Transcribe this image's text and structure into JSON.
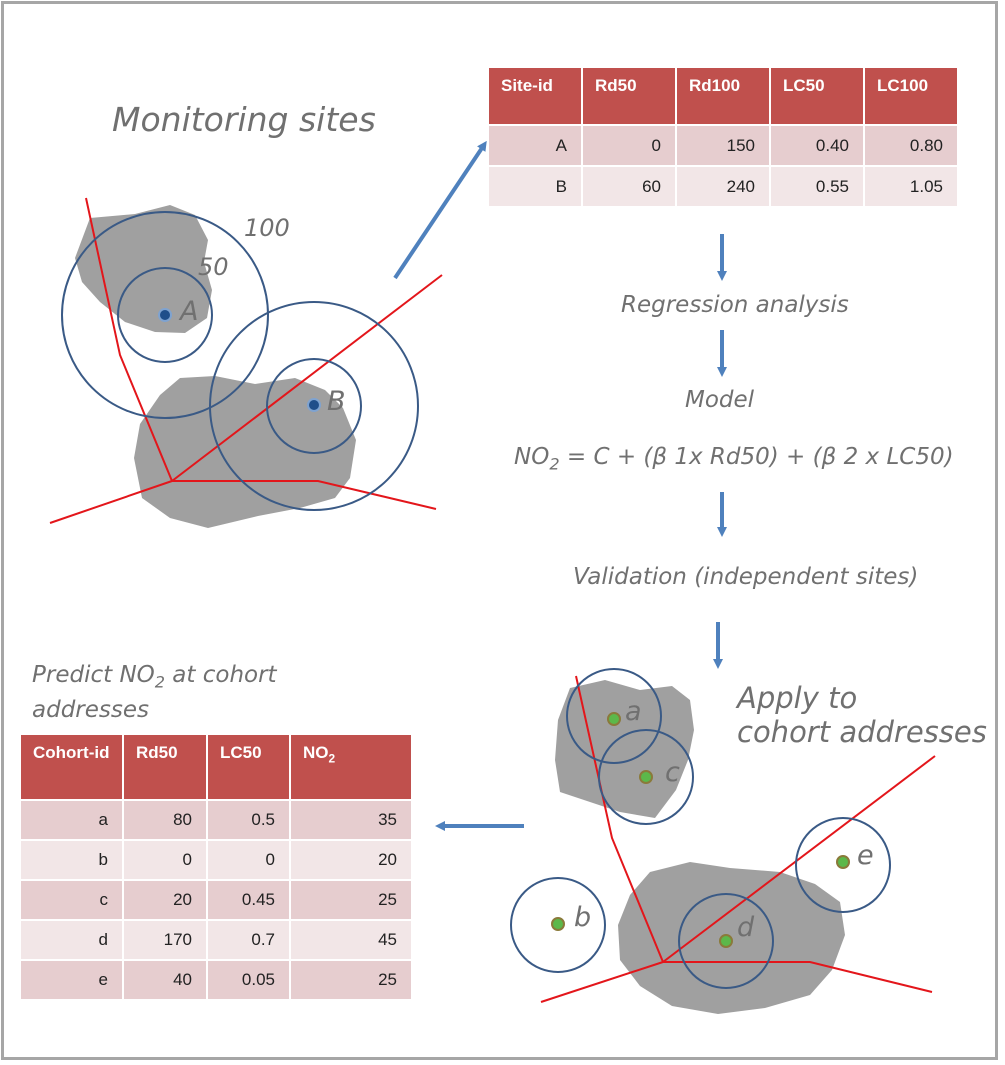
{
  "monitoring_title": "Monitoring sites",
  "buffer_labels": {
    "outer": "100",
    "inner": "50"
  },
  "site_labels": [
    "A",
    "B"
  ],
  "sites_table": {
    "headers": [
      "Site-id",
      "Rd50",
      "Rd100",
      "LC50",
      "LC100"
    ],
    "rows": [
      [
        "A",
        "0",
        "150",
        "0.40",
        "0.80"
      ],
      [
        "B",
        "60",
        "240",
        "0.55",
        "1.05"
      ]
    ]
  },
  "steps": {
    "regression": "Regression analysis",
    "model": "Model",
    "formula_lhs": "NO",
    "formula_sub": "2",
    "formula_rhs": " = C + (β 1x Rd50) + (β 2 x LC50)",
    "validation": "Validation (independent sites)",
    "apply_line1": "Apply to",
    "apply_line2": "cohort addresses"
  },
  "predict": {
    "line1_pre": "Predict NO",
    "line1_sub": "2",
    "line1_post": " at cohort",
    "line2": "addresses"
  },
  "cohort_labels": [
    "a",
    "b",
    "c",
    "d",
    "e"
  ],
  "cohort_table": {
    "headers": [
      "Cohort-id",
      "Rd50",
      "LC50",
      "NO"
    ],
    "header_no_sub": "2",
    "rows": [
      [
        "a",
        "80",
        "0.5",
        "35"
      ],
      [
        "b",
        "0",
        "0",
        "20"
      ],
      [
        "c",
        "20",
        "0.45",
        "25"
      ],
      [
        "d",
        "170",
        "0.7",
        "45"
      ],
      [
        "e",
        "40",
        "0.05",
        "25"
      ]
    ]
  },
  "colors": {
    "road": "#e3161b",
    "buffer": "#3a5a86",
    "land": "#a0a0a0",
    "arrow": "#4f81bd",
    "header": "#c0504d",
    "site_point": "#1f4e8a",
    "cohort_point": "#5cb84a"
  }
}
